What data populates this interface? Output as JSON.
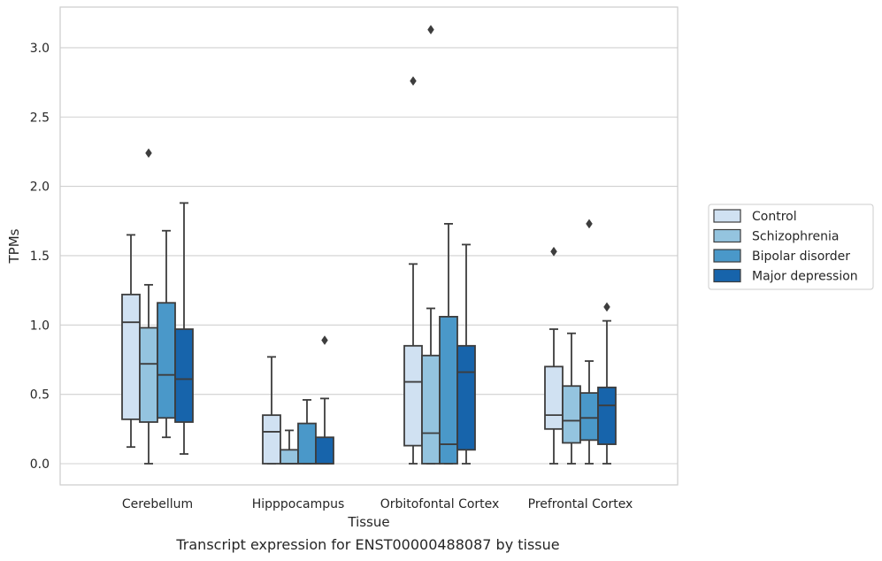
{
  "caption": "Transcript expression for ENST00000488087 by tissue",
  "chart_data": {
    "type": "box",
    "xlabel": "Tissue",
    "ylabel": "TPMs",
    "ylim": [
      -0.15,
      3.3
    ],
    "yticks": [
      0.0,
      0.5,
      1.0,
      1.5,
      2.0,
      2.5,
      3.0
    ],
    "ytick_labels": [
      "0.0",
      "0.5",
      "1.0",
      "1.5",
      "2.0",
      "2.5",
      "3.0"
    ],
    "grid": "horizontal",
    "legend_position": "right",
    "categories": [
      "Cerebellum",
      "Hipppocampus",
      "Orbitofontal Cortex",
      "Prefrontal Cortex"
    ],
    "series": [
      {
        "name": "Control",
        "color": "#d0e1f2",
        "boxes": [
          {
            "whislo": 0.12,
            "q1": 0.32,
            "med": 1.02,
            "q3": 1.22,
            "whishi": 1.65,
            "fliers": []
          },
          {
            "whislo": 0.0,
            "q1": 0.0,
            "med": 0.23,
            "q3": 0.35,
            "whishi": 0.77,
            "fliers": []
          },
          {
            "whislo": 0.0,
            "q1": 0.13,
            "med": 0.59,
            "q3": 0.85,
            "whishi": 1.44,
            "fliers": [
              2.76
            ]
          },
          {
            "whislo": 0.0,
            "q1": 0.25,
            "med": 0.35,
            "q3": 0.7,
            "whishi": 0.97,
            "fliers": [
              1.53
            ]
          }
        ]
      },
      {
        "name": "Schizophrenia",
        "color": "#94c4df",
        "boxes": [
          {
            "whislo": 0.0,
            "q1": 0.3,
            "med": 0.72,
            "q3": 0.98,
            "whishi": 1.29,
            "fliers": [
              2.24
            ]
          },
          {
            "whislo": 0.0,
            "q1": 0.0,
            "med": 0.0,
            "q3": 0.1,
            "whishi": 0.24,
            "fliers": []
          },
          {
            "whislo": 0.0,
            "q1": 0.0,
            "med": 0.22,
            "q3": 0.78,
            "whishi": 1.12,
            "fliers": [
              3.13
            ]
          },
          {
            "whislo": 0.0,
            "q1": 0.15,
            "med": 0.31,
            "q3": 0.56,
            "whishi": 0.94,
            "fliers": []
          }
        ]
      },
      {
        "name": "Bipolar disorder",
        "color": "#4a98c9",
        "boxes": [
          {
            "whislo": 0.19,
            "q1": 0.33,
            "med": 0.64,
            "q3": 1.16,
            "whishi": 1.68,
            "fliers": []
          },
          {
            "whislo": 0.0,
            "q1": 0.0,
            "med": 0.0,
            "q3": 0.29,
            "whishi": 0.46,
            "fliers": []
          },
          {
            "whislo": 0.0,
            "q1": 0.0,
            "med": 0.14,
            "q3": 1.06,
            "whishi": 1.73,
            "fliers": []
          },
          {
            "whislo": 0.0,
            "q1": 0.17,
            "med": 0.33,
            "q3": 0.51,
            "whishi": 0.74,
            "fliers": [
              1.73
            ]
          }
        ]
      },
      {
        "name": "Major depression",
        "color": "#1764ab",
        "boxes": [
          {
            "whislo": 0.07,
            "q1": 0.3,
            "med": 0.61,
            "q3": 0.97,
            "whishi": 1.88,
            "fliers": []
          },
          {
            "whislo": 0.0,
            "q1": 0.0,
            "med": 0.0,
            "q3": 0.19,
            "whishi": 0.47,
            "fliers": [
              0.89
            ]
          },
          {
            "whislo": 0.0,
            "q1": 0.1,
            "med": 0.66,
            "q3": 0.85,
            "whishi": 1.58,
            "fliers": []
          },
          {
            "whislo": 0.0,
            "q1": 0.14,
            "med": 0.42,
            "q3": 0.55,
            "whishi": 1.03,
            "fliers": [
              1.13
            ]
          }
        ]
      }
    ]
  }
}
